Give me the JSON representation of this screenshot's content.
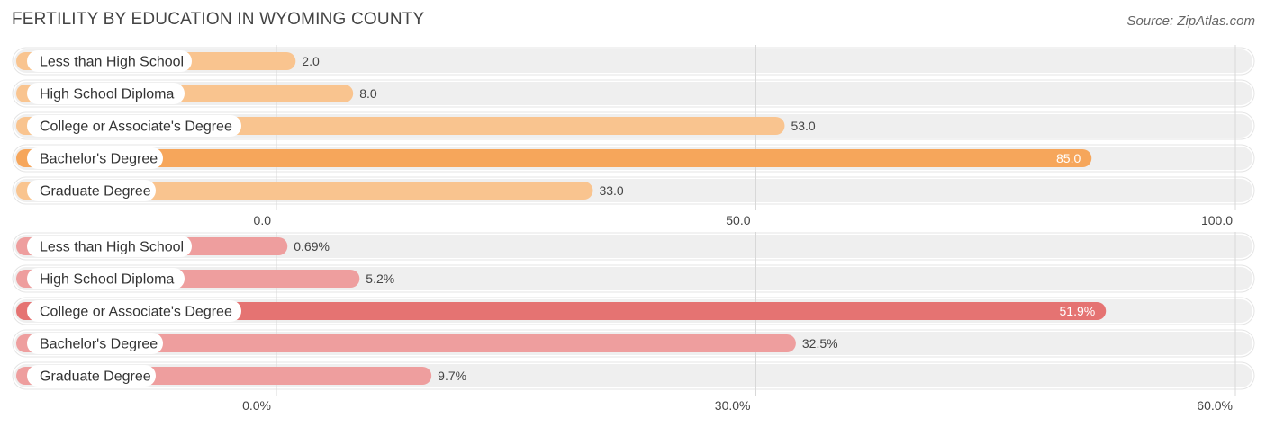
{
  "title": "FERTILITY BY EDUCATION IN WYOMING COUNTY",
  "source": "Source: ZipAtlas.com",
  "chart_data": [
    {
      "type": "bar",
      "orientation": "horizontal",
      "categories": [
        "Less than High School",
        "High School Diploma",
        "College or Associate's Degree",
        "Bachelor's Degree",
        "Graduate Degree"
      ],
      "values": [
        2.0,
        8.0,
        53.0,
        85.0,
        33.0
      ],
      "value_labels": [
        "2.0",
        "8.0",
        "53.0",
        "85.0",
        "33.0"
      ],
      "xlim": [
        0,
        100
      ],
      "ticks": [
        0,
        50,
        100
      ],
      "tick_labels": [
        "0.0",
        "50.0",
        "100.0"
      ],
      "highlight_index": 3,
      "colors": {
        "bar": "#F9C48F",
        "highlight": "#F6A65B",
        "track": "#EFEFEF"
      },
      "grid": true
    },
    {
      "type": "bar",
      "orientation": "horizontal",
      "categories": [
        "Less than High School",
        "High School Diploma",
        "College or Associate's Degree",
        "Bachelor's Degree",
        "Graduate Degree"
      ],
      "values": [
        0.69,
        5.2,
        51.9,
        32.5,
        9.7
      ],
      "value_labels": [
        "0.69%",
        "5.2%",
        "51.9%",
        "32.5%",
        "9.7%"
      ],
      "xlim": [
        0,
        60
      ],
      "ticks": [
        0,
        30,
        60
      ],
      "tick_labels": [
        "0.0%",
        "30.0%",
        "60.0%"
      ],
      "highlight_index": 2,
      "colors": {
        "bar": "#EE9E9E",
        "highlight": "#E57372",
        "track": "#EFEFEF"
      },
      "grid": true
    }
  ]
}
